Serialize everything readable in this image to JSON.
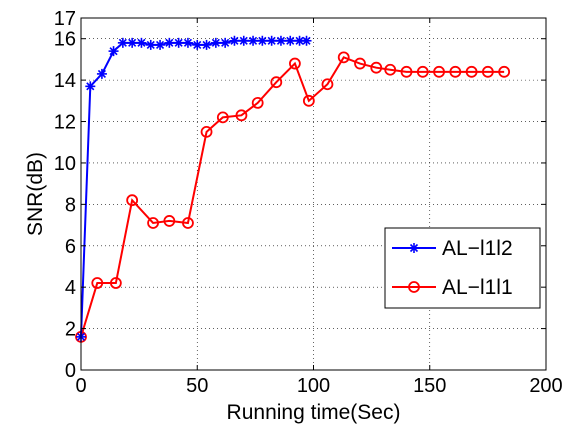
{
  "chart_data": {
    "type": "line",
    "title": "",
    "xlabel": "Running time(Sec)",
    "ylabel": "SNR(dB)",
    "xlim": [
      0,
      200
    ],
    "ylim": [
      0,
      17
    ],
    "xticks": [
      0,
      50,
      100,
      150,
      200
    ],
    "yticks": [
      0,
      2,
      4,
      6,
      8,
      10,
      12,
      14,
      16,
      17
    ],
    "grid": true,
    "legend_position": "lower-right",
    "series": [
      {
        "name": "AL−l1l2",
        "color": "#0000ff",
        "marker": "asterisk",
        "x": [
          0,
          4,
          9,
          14,
          18,
          22,
          26,
          30,
          34,
          38,
          42,
          46,
          50,
          54,
          58,
          62,
          66,
          70,
          74,
          78,
          82,
          86,
          90,
          94,
          97
        ],
        "y": [
          1.6,
          13.7,
          14.3,
          15.4,
          15.8,
          15.8,
          15.8,
          15.7,
          15.7,
          15.8,
          15.8,
          15.8,
          15.7,
          15.7,
          15.8,
          15.8,
          15.9,
          15.9,
          15.9,
          15.9,
          15.9,
          15.9,
          15.9,
          15.9,
          15.9
        ]
      },
      {
        "name": "AL−l1l1",
        "color": "#ff0000",
        "marker": "circle",
        "x": [
          0,
          7,
          15,
          22,
          31,
          38,
          46,
          54,
          61,
          69,
          76,
          84,
          92,
          98,
          106,
          113,
          120,
          127,
          133,
          140,
          147,
          154,
          161,
          168,
          175,
          182
        ],
        "y": [
          1.6,
          4.2,
          4.2,
          8.2,
          7.1,
          7.2,
          7.1,
          11.5,
          12.2,
          12.3,
          12.9,
          13.9,
          14.8,
          13.0,
          13.8,
          15.1,
          14.8,
          14.6,
          14.5,
          14.4,
          14.4,
          14.4,
          14.4,
          14.4,
          14.4,
          14.4
        ]
      }
    ]
  }
}
